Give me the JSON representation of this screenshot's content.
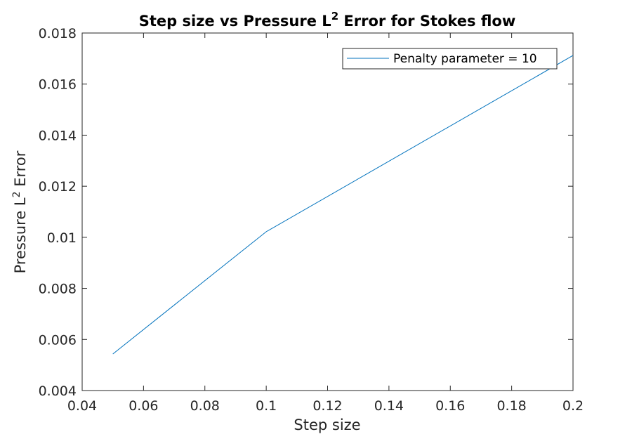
{
  "chart_data": {
    "type": "line",
    "title": {
      "main": "Step size vs Pressure L",
      "superscript": "2",
      "rest": " Error for Stokes flow"
    },
    "xlabel": "Step size",
    "ylabel": {
      "main": "Pressure L",
      "superscript": "2",
      "rest": " Error"
    },
    "xlim": [
      0.04,
      0.2
    ],
    "ylim": [
      0.004,
      0.018
    ],
    "xticks": [
      0.04,
      0.06,
      0.08,
      0.1,
      0.12,
      0.14,
      0.16,
      0.18,
      0.2
    ],
    "xtick_labels": [
      "0.04",
      "0.06",
      "0.08",
      "0.1",
      "0.12",
      "0.14",
      "0.16",
      "0.18",
      "0.2"
    ],
    "yticks": [
      0.004,
      0.006,
      0.008,
      0.01,
      0.012,
      0.014,
      0.016,
      0.018
    ],
    "ytick_labels": [
      "0.004",
      "0.006",
      "0.008",
      "0.01",
      "0.012",
      "0.014",
      "0.016",
      "0.018"
    ],
    "grid": false,
    "legend_position": "top-right",
    "series": [
      {
        "name": "Penalty parameter = 10",
        "color": "#0072BD",
        "x": [
          0.05,
          0.1,
          0.2
        ],
        "y": [
          0.00543,
          0.01022,
          0.01712
        ]
      }
    ]
  }
}
